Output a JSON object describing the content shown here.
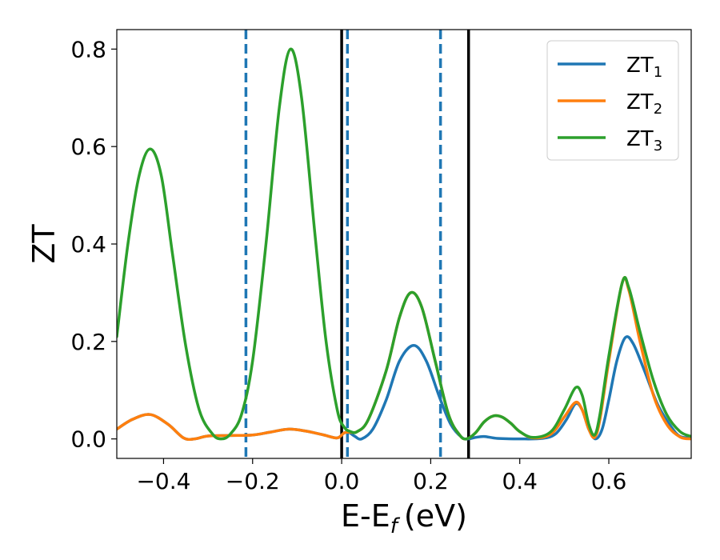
{
  "chart_data": {
    "type": "line",
    "title": "",
    "xlabel": "E-E",
    "xlabel_sub": "f",
    "xlabel_unit": "(eV)",
    "ylabel": "ZT",
    "xlim": [
      -0.505,
      0.785
    ],
    "ylim": [
      -0.04,
      0.84
    ],
    "xticks": [
      -0.4,
      -0.2,
      0.0,
      0.2,
      0.4,
      0.6
    ],
    "xtick_labels": [
      "−0.4",
      "−0.2",
      "0.0",
      "0.2",
      "0.4",
      "0.6"
    ],
    "yticks": [
      0.0,
      0.2,
      0.4,
      0.6,
      0.8
    ],
    "ytick_labels": [
      "0.0",
      "0.2",
      "0.4",
      "0.6",
      "0.8"
    ],
    "grid": false,
    "legend_position": "top-right",
    "vlines": [
      {
        "x": -0.215,
        "style": "dashed",
        "color": "#1f77b4"
      },
      {
        "x": 0.013,
        "style": "dashed",
        "color": "#1f77b4"
      },
      {
        "x": 0.222,
        "style": "dashed",
        "color": "#1f77b4"
      },
      {
        "x": 0.0,
        "style": "solid",
        "color": "#000000"
      },
      {
        "x": 0.285,
        "style": "solid",
        "color": "#000000"
      }
    ],
    "series": [
      {
        "name": "ZT",
        "sub": "1",
        "color": "#1f77b4",
        "points": [
          [
            -0.505,
            0.02
          ],
          [
            -0.47,
            0.04
          ],
          [
            -0.43,
            0.05
          ],
          [
            -0.39,
            0.03
          ],
          [
            -0.355,
            0.002
          ],
          [
            -0.33,
            0.0
          ],
          [
            -0.3,
            0.006
          ],
          [
            -0.25,
            0.007
          ],
          [
            -0.2,
            0.008
          ],
          [
            -0.16,
            0.014
          ],
          [
            -0.12,
            0.02
          ],
          [
            -0.08,
            0.016
          ],
          [
            -0.04,
            0.008
          ],
          [
            -0.01,
            0.002
          ],
          [
            0.005,
            0.012
          ],
          [
            0.015,
            0.014
          ],
          [
            0.03,
            0.005
          ],
          [
            0.045,
            0.0
          ],
          [
            0.07,
            0.02
          ],
          [
            0.1,
            0.08
          ],
          [
            0.13,
            0.16
          ],
          [
            0.162,
            0.192
          ],
          [
            0.19,
            0.16
          ],
          [
            0.22,
            0.085
          ],
          [
            0.245,
            0.03
          ],
          [
            0.27,
            0.003
          ],
          [
            0.285,
            0.0
          ],
          [
            0.3,
            0.003
          ],
          [
            0.32,
            0.005
          ],
          [
            0.35,
            0.001
          ],
          [
            0.4,
            0.0
          ],
          [
            0.45,
            0.001
          ],
          [
            0.48,
            0.01
          ],
          [
            0.505,
            0.04
          ],
          [
            0.525,
            0.072
          ],
          [
            0.54,
            0.06
          ],
          [
            0.555,
            0.02
          ],
          [
            0.57,
            0.0
          ],
          [
            0.585,
            0.02
          ],
          [
            0.6,
            0.08
          ],
          [
            0.618,
            0.16
          ],
          [
            0.637,
            0.208
          ],
          [
            0.655,
            0.195
          ],
          [
            0.68,
            0.14
          ],
          [
            0.71,
            0.07
          ],
          [
            0.74,
            0.025
          ],
          [
            0.76,
            0.005
          ],
          [
            0.785,
            0.002
          ]
        ]
      },
      {
        "name": "ZT",
        "sub": "2",
        "color": "#ff7f0e",
        "points": [
          [
            -0.505,
            0.02
          ],
          [
            -0.47,
            0.04
          ],
          [
            -0.43,
            0.05
          ],
          [
            -0.39,
            0.03
          ],
          [
            -0.355,
            0.002
          ],
          [
            -0.33,
            0.0
          ],
          [
            -0.3,
            0.006
          ],
          [
            -0.25,
            0.007
          ],
          [
            -0.2,
            0.008
          ],
          [
            -0.16,
            0.014
          ],
          [
            -0.12,
            0.02
          ],
          [
            -0.08,
            0.016
          ],
          [
            -0.04,
            0.008
          ],
          [
            -0.01,
            0.002
          ],
          [
            0.005,
            0.012
          ],
          [
            0.015,
            0.014
          ],
          [
            0.035,
            0.015
          ],
          [
            0.06,
            0.04
          ],
          [
            0.1,
            0.14
          ],
          [
            0.13,
            0.25
          ],
          [
            0.155,
            0.3
          ],
          [
            0.18,
            0.27
          ],
          [
            0.21,
            0.16
          ],
          [
            0.24,
            0.05
          ],
          [
            0.265,
            0.008
          ],
          [
            0.28,
            0.0
          ],
          [
            0.3,
            0.012
          ],
          [
            0.32,
            0.035
          ],
          [
            0.34,
            0.047
          ],
          [
            0.36,
            0.045
          ],
          [
            0.38,
            0.032
          ],
          [
            0.4,
            0.015
          ],
          [
            0.43,
            0.002
          ],
          [
            0.47,
            0.01
          ],
          [
            0.5,
            0.045
          ],
          [
            0.525,
            0.075
          ],
          [
            0.54,
            0.06
          ],
          [
            0.555,
            0.02
          ],
          [
            0.568,
            0.003
          ],
          [
            0.58,
            0.04
          ],
          [
            0.6,
            0.16
          ],
          [
            0.63,
            0.32
          ],
          [
            0.645,
            0.305
          ],
          [
            0.67,
            0.2
          ],
          [
            0.7,
            0.09
          ],
          [
            0.73,
            0.03
          ],
          [
            0.76,
            0.004
          ],
          [
            0.785,
            0.0
          ]
        ]
      },
      {
        "name": "ZT",
        "sub": "3",
        "color": "#2ca02c",
        "points": [
          [
            -0.505,
            0.21
          ],
          [
            -0.48,
            0.4
          ],
          [
            -0.455,
            0.54
          ],
          [
            -0.43,
            0.595
          ],
          [
            -0.405,
            0.54
          ],
          [
            -0.38,
            0.38
          ],
          [
            -0.35,
            0.19
          ],
          [
            -0.32,
            0.06
          ],
          [
            -0.29,
            0.01
          ],
          [
            -0.27,
            0.0
          ],
          [
            -0.25,
            0.01
          ],
          [
            -0.225,
            0.05
          ],
          [
            -0.2,
            0.16
          ],
          [
            -0.17,
            0.4
          ],
          [
            -0.14,
            0.68
          ],
          [
            -0.115,
            0.8
          ],
          [
            -0.09,
            0.7
          ],
          [
            -0.06,
            0.42
          ],
          [
            -0.035,
            0.2
          ],
          [
            -0.01,
            0.06
          ],
          [
            0.005,
            0.025
          ],
          [
            0.02,
            0.015
          ],
          [
            0.035,
            0.015
          ],
          [
            0.06,
            0.04
          ],
          [
            0.1,
            0.14
          ],
          [
            0.13,
            0.25
          ],
          [
            0.155,
            0.3
          ],
          [
            0.18,
            0.27
          ],
          [
            0.21,
            0.16
          ],
          [
            0.24,
            0.05
          ],
          [
            0.265,
            0.008
          ],
          [
            0.28,
            0.0
          ],
          [
            0.3,
            0.012
          ],
          [
            0.32,
            0.035
          ],
          [
            0.34,
            0.047
          ],
          [
            0.36,
            0.045
          ],
          [
            0.38,
            0.032
          ],
          [
            0.4,
            0.015
          ],
          [
            0.43,
            0.003
          ],
          [
            0.47,
            0.015
          ],
          [
            0.5,
            0.06
          ],
          [
            0.525,
            0.105
          ],
          [
            0.54,
            0.09
          ],
          [
            0.555,
            0.03
          ],
          [
            0.568,
            0.008
          ],
          [
            0.58,
            0.05
          ],
          [
            0.6,
            0.17
          ],
          [
            0.63,
            0.32
          ],
          [
            0.645,
            0.31
          ],
          [
            0.67,
            0.22
          ],
          [
            0.7,
            0.12
          ],
          [
            0.73,
            0.05
          ],
          [
            0.76,
            0.015
          ],
          [
            0.785,
            0.005
          ]
        ]
      }
    ]
  }
}
